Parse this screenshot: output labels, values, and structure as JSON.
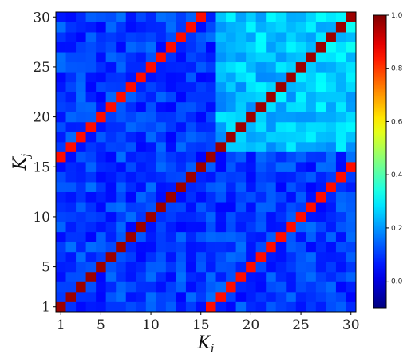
{
  "chart_data": {
    "type": "heatmap",
    "size": 30,
    "x_range": [
      1,
      30
    ],
    "y_range": [
      1,
      30
    ],
    "x_ticks": [
      "1",
      "5",
      "10",
      "15",
      "20",
      "25",
      "30"
    ],
    "y_ticks": [
      "1",
      "5",
      "10",
      "15",
      "20",
      "25",
      "30"
    ],
    "xlabel_base": "K",
    "xlabel_sub": "i",
    "ylabel_base": "K",
    "ylabel_sub": "j",
    "colorbar": {
      "colormap": "jet",
      "range": [
        -0.1,
        1.0
      ],
      "ticks": [
        "0.0",
        "0.2",
        "0.4",
        "0.6",
        "0.8",
        "1.0"
      ]
    },
    "structure": {
      "main_diagonal_value": 0.97,
      "offset_diagonal_upper_value": 0.85,
      "offset_diagonal_lower_value": 0.85,
      "offset": 15,
      "background_mean": 0.1,
      "top_right_block_mean": 0.22
    },
    "title": ""
  }
}
